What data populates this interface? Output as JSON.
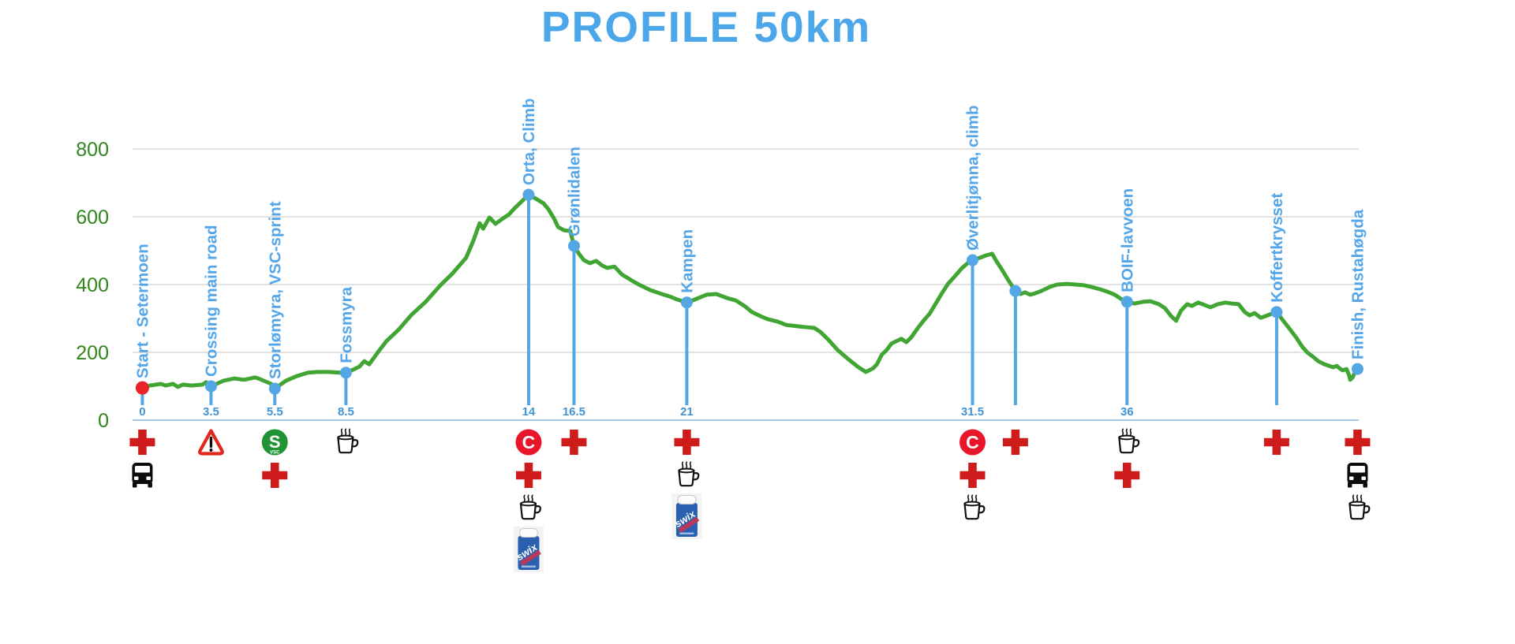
{
  "title": "PROFILE 50km",
  "colors": {
    "title_blue": "#4BA7EA",
    "marker_blue": "#53A7E5",
    "label_blue": "#54A6E8",
    "km_blue": "#4095D8",
    "curve_green": "#41A534",
    "axis_label_green": "#2F861C",
    "grid_gray": "#D9D9D9",
    "axis_line_blue": "#A9C7E4",
    "cross_red": "#CE1C1C",
    "badge_red": "#E8152B",
    "warning_red": "#E3261A",
    "sprint_green": "#209434",
    "start_dot_red": "#E8232A",
    "swix_blue": "#2B5FB0"
  },
  "chart_data": {
    "type": "line",
    "title": "PROFILE 50km",
    "xlabel": "",
    "ylabel": "",
    "x_unit": "km",
    "y_unit": "m",
    "ylim": [
      0,
      800
    ],
    "y_ticks": [
      0,
      200,
      400,
      600,
      800
    ],
    "y_tick_labels": [
      "0",
      "200",
      "400",
      "600",
      "800"
    ],
    "grid": true,
    "legend": "none",
    "x_axis_note": "category-style axis: marker pos = fraction of plot width as drawn, km values are the true distances",
    "series_name": "elevation profile",
    "markers": [
      {
        "name": "Start - Setermoen",
        "km": "0",
        "pos": 0.008,
        "elev": 95,
        "dot": "red",
        "line": true,
        "icons": [
          "first-aid",
          "bus"
        ]
      },
      {
        "name": "Crossing main road",
        "km": "3.5",
        "pos": 0.064,
        "elev": 100,
        "dot": "blue",
        "line": true,
        "icons": [
          "warning"
        ]
      },
      {
        "name": "Storlømyra, VSC-sprint",
        "km": "5.5",
        "pos": 0.116,
        "elev": 93,
        "dot": "blue",
        "line": true,
        "icons": [
          "sprint",
          "first-aid"
        ]
      },
      {
        "name": "Fossmyra",
        "km": "8.5",
        "pos": 0.174,
        "elev": 140,
        "dot": "blue",
        "line": true,
        "icons": [
          "coffee"
        ]
      },
      {
        "name": "Orta, Climb",
        "km": "14",
        "pos": 0.323,
        "elev": 665,
        "dot": "blue",
        "line": true,
        "icons": [
          "checkpoint",
          "first-aid",
          "coffee",
          "swix"
        ]
      },
      {
        "name": "Grønlidalen",
        "km": "16.5",
        "pos": 0.36,
        "elev": 514,
        "dot": "blue",
        "line": true,
        "icons": [
          "first-aid"
        ]
      },
      {
        "name": "Kampen",
        "km": "21",
        "pos": 0.452,
        "elev": 347,
        "dot": "blue",
        "line": true,
        "icons": [
          "first-aid",
          "coffee",
          "swix"
        ]
      },
      {
        "name": "Øverlitjønna, climb",
        "km": "31.5",
        "pos": 0.685,
        "elev": 472,
        "dot": "blue",
        "line": true,
        "icons": [
          "checkpoint",
          "first-aid",
          "coffee"
        ]
      },
      {
        "name": "",
        "km": "",
        "pos": 0.72,
        "elev": 381,
        "dot": "blue",
        "line": true,
        "icons": [
          "first-aid"
        ]
      },
      {
        "name": "BOIF-lavvoen",
        "km": "36",
        "pos": 0.811,
        "elev": 349,
        "dot": "blue",
        "line": true,
        "icons": [
          "coffee",
          "first-aid"
        ]
      },
      {
        "name": "Koffertkrysset",
        "km": "",
        "pos": 0.933,
        "elev": 319,
        "dot": "blue",
        "line": true,
        "icons": [
          "first-aid"
        ]
      },
      {
        "name": "Finish, Rustahøgda",
        "km": "",
        "pos": 0.999,
        "elev": 151,
        "dot": "blue",
        "line": false,
        "icons": [
          "first-aid",
          "bus",
          "coffee"
        ]
      }
    ],
    "profile": [
      [
        0.008,
        95
      ],
      [
        0.014,
        102
      ],
      [
        0.023,
        107
      ],
      [
        0.027,
        102
      ],
      [
        0.033,
        107
      ],
      [
        0.037,
        98
      ],
      [
        0.041,
        105
      ],
      [
        0.048,
        102
      ],
      [
        0.057,
        105
      ],
      [
        0.06,
        112
      ],
      [
        0.064,
        100
      ],
      [
        0.069,
        108
      ],
      [
        0.074,
        116
      ],
      [
        0.083,
        123
      ],
      [
        0.091,
        119
      ],
      [
        0.1,
        126
      ],
      [
        0.104,
        121
      ],
      [
        0.113,
        107
      ],
      [
        0.116,
        93
      ],
      [
        0.125,
        116
      ],
      [
        0.134,
        130
      ],
      [
        0.143,
        140
      ],
      [
        0.151,
        142
      ],
      [
        0.16,
        142
      ],
      [
        0.169,
        140
      ],
      [
        0.174,
        140
      ],
      [
        0.18,
        149
      ],
      [
        0.185,
        158
      ],
      [
        0.189,
        174
      ],
      [
        0.193,
        165
      ],
      [
        0.201,
        205
      ],
      [
        0.207,
        233
      ],
      [
        0.217,
        267
      ],
      [
        0.227,
        309
      ],
      [
        0.239,
        349
      ],
      [
        0.251,
        398
      ],
      [
        0.261,
        433
      ],
      [
        0.272,
        479
      ],
      [
        0.278,
        530
      ],
      [
        0.283,
        581
      ],
      [
        0.286,
        565
      ],
      [
        0.291,
        598
      ],
      [
        0.296,
        579
      ],
      [
        0.302,
        595
      ],
      [
        0.307,
        607
      ],
      [
        0.311,
        623
      ],
      [
        0.317,
        644
      ],
      [
        0.323,
        665
      ],
      [
        0.329,
        653
      ],
      [
        0.335,
        640
      ],
      [
        0.339,
        623
      ],
      [
        0.344,
        593
      ],
      [
        0.347,
        570
      ],
      [
        0.352,
        560
      ],
      [
        0.357,
        558
      ],
      [
        0.36,
        514
      ],
      [
        0.364,
        491
      ],
      [
        0.368,
        472
      ],
      [
        0.373,
        463
      ],
      [
        0.378,
        470
      ],
      [
        0.383,
        456
      ],
      [
        0.387,
        449
      ],
      [
        0.393,
        453
      ],
      [
        0.399,
        430
      ],
      [
        0.407,
        412
      ],
      [
        0.414,
        398
      ],
      [
        0.422,
        384
      ],
      [
        0.43,
        374
      ],
      [
        0.438,
        365
      ],
      [
        0.444,
        356
      ],
      [
        0.452,
        347
      ],
      [
        0.46,
        358
      ],
      [
        0.468,
        370
      ],
      [
        0.476,
        372
      ],
      [
        0.485,
        360
      ],
      [
        0.492,
        353
      ],
      [
        0.499,
        337
      ],
      [
        0.505,
        319
      ],
      [
        0.512,
        307
      ],
      [
        0.518,
        298
      ],
      [
        0.526,
        291
      ],
      [
        0.533,
        281
      ],
      [
        0.542,
        277
      ],
      [
        0.55,
        274
      ],
      [
        0.556,
        272
      ],
      [
        0.561,
        260
      ],
      [
        0.568,
        235
      ],
      [
        0.575,
        207
      ],
      [
        0.584,
        179
      ],
      [
        0.592,
        156
      ],
      [
        0.598,
        142
      ],
      [
        0.604,
        153
      ],
      [
        0.607,
        165
      ],
      [
        0.611,
        193
      ],
      [
        0.615,
        207
      ],
      [
        0.619,
        226
      ],
      [
        0.623,
        233
      ],
      [
        0.627,
        240
      ],
      [
        0.631,
        230
      ],
      [
        0.635,
        244
      ],
      [
        0.64,
        270
      ],
      [
        0.645,
        293
      ],
      [
        0.65,
        314
      ],
      [
        0.655,
        344
      ],
      [
        0.66,
        374
      ],
      [
        0.665,
        402
      ],
      [
        0.671,
        426
      ],
      [
        0.676,
        447
      ],
      [
        0.681,
        463
      ],
      [
        0.685,
        472
      ],
      [
        0.691,
        479
      ],
      [
        0.696,
        486
      ],
      [
        0.701,
        491
      ],
      [
        0.704,
        472
      ],
      [
        0.709,
        444
      ],
      [
        0.714,
        414
      ],
      [
        0.72,
        381
      ],
      [
        0.724,
        372
      ],
      [
        0.728,
        377
      ],
      [
        0.732,
        370
      ],
      [
        0.736,
        374
      ],
      [
        0.741,
        381
      ],
      [
        0.748,
        393
      ],
      [
        0.754,
        400
      ],
      [
        0.762,
        402
      ],
      [
        0.769,
        400
      ],
      [
        0.776,
        398
      ],
      [
        0.782,
        393
      ],
      [
        0.789,
        386
      ],
      [
        0.795,
        379
      ],
      [
        0.801,
        370
      ],
      [
        0.806,
        358
      ],
      [
        0.811,
        349
      ],
      [
        0.817,
        344
      ],
      [
        0.824,
        349
      ],
      [
        0.83,
        351
      ],
      [
        0.837,
        342
      ],
      [
        0.842,
        330
      ],
      [
        0.847,
        307
      ],
      [
        0.851,
        293
      ],
      [
        0.855,
        323
      ],
      [
        0.86,
        342
      ],
      [
        0.864,
        337
      ],
      [
        0.869,
        347
      ],
      [
        0.874,
        340
      ],
      [
        0.879,
        333
      ],
      [
        0.885,
        342
      ],
      [
        0.891,
        347
      ],
      [
        0.897,
        344
      ],
      [
        0.902,
        342
      ],
      [
        0.907,
        319
      ],
      [
        0.911,
        309
      ],
      [
        0.915,
        316
      ],
      [
        0.92,
        302
      ],
      [
        0.924,
        307
      ],
      [
        0.929,
        314
      ],
      [
        0.933,
        319
      ],
      [
        0.938,
        295
      ],
      [
        0.943,
        272
      ],
      [
        0.949,
        244
      ],
      [
        0.954,
        216
      ],
      [
        0.958,
        200
      ],
      [
        0.963,
        186
      ],
      [
        0.967,
        174
      ],
      [
        0.972,
        165
      ],
      [
        0.976,
        160
      ],
      [
        0.979,
        156
      ],
      [
        0.982,
        160
      ],
      [
        0.985,
        151
      ],
      [
        0.987,
        147
      ],
      [
        0.99,
        151
      ],
      [
        0.992,
        133
      ],
      [
        0.993,
        119
      ],
      [
        0.995,
        126
      ],
      [
        0.997,
        142
      ],
      [
        0.999,
        151
      ]
    ],
    "icon_legend": {
      "first-aid": "first aid station (red cross)",
      "bus": "shuttle bus",
      "warning": "road crossing warning triangle",
      "sprint": "VSC sprint point (green S badge)",
      "coffee": "refreshment / coffee station",
      "checkpoint": "checkpoint (red C badge)",
      "swix": "Swix wax service"
    }
  }
}
